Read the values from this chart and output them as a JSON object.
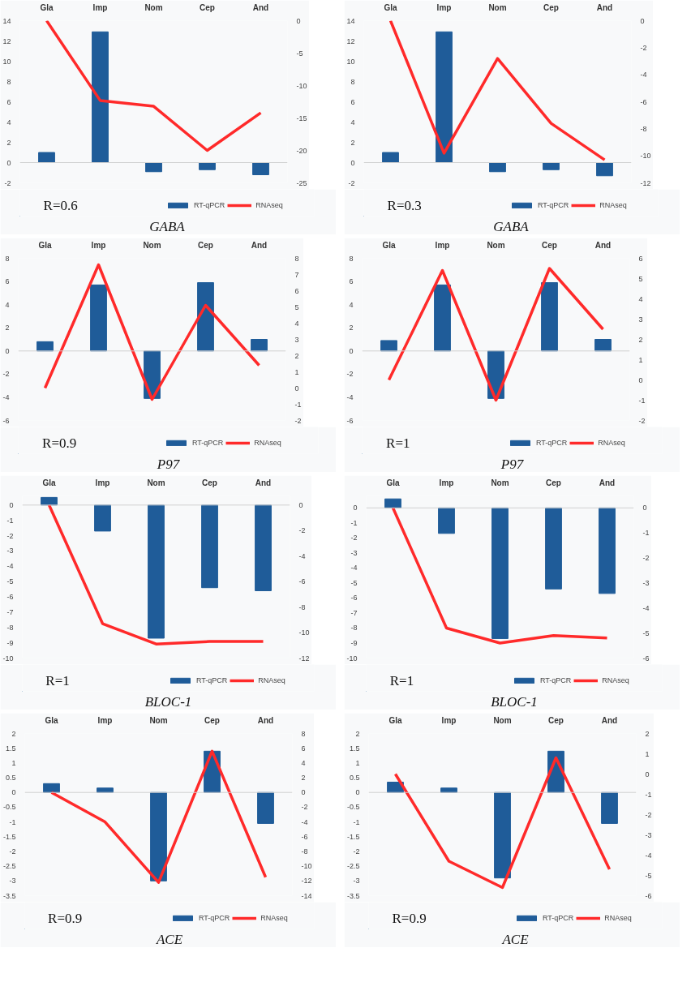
{
  "chart_data": [
    {
      "type": "bar",
      "title": "GABA",
      "categories": [
        "Gla",
        "Imp",
        "Nom",
        "Cep",
        "And"
      ],
      "annotations": [
        "R=0.6"
      ],
      "legend": "bottom",
      "ylim": [
        -2,
        14
      ],
      "yticks": [
        -2,
        0,
        2,
        4,
        6,
        8,
        10,
        12,
        14
      ],
      "y2lim": [
        -25,
        0
      ],
      "y2ticks": [
        -25,
        -20,
        -15,
        -10,
        -5,
        0
      ],
      "ref_lines": [
        {
          "axis": "y",
          "value": 0
        }
      ],
      "series": [
        {
          "name": "RT-qPCR",
          "color": "#1f5c99",
          "values": [
            1.0,
            12.9,
            -0.9,
            -0.7,
            -1.2
          ]
        },
        {
          "name": "RNAseq",
          "type": "line",
          "axis": "y2",
          "color": "#ff2a2a",
          "values": [
            0,
            -12.3,
            -13.2,
            -20,
            -14.2
          ]
        }
      ]
    },
    {
      "type": "bar",
      "title": "GABA",
      "categories": [
        "Gla",
        "Imp",
        "Nom",
        "Cep",
        "And"
      ],
      "annotations": [
        "R=0.3"
      ],
      "legend": "bottom",
      "ylim": [
        -2,
        14
      ],
      "yticks": [
        -2,
        0,
        2,
        4,
        6,
        8,
        10,
        12,
        14
      ],
      "y2lim": [
        -12,
        0
      ],
      "y2ticks": [
        -12,
        -10,
        -8,
        -6,
        -4,
        -2,
        0
      ],
      "ref_lines": [
        {
          "axis": "y",
          "value": 0
        }
      ],
      "series": [
        {
          "name": "RT-qPCR",
          "color": "#1f5c99",
          "values": [
            1.0,
            12.9,
            -0.9,
            -0.7,
            -1.3
          ]
        },
        {
          "name": "RNAseq",
          "type": "line",
          "axis": "y2",
          "color": "#ff2a2a",
          "values": [
            0,
            -9.8,
            -2.8,
            -7.6,
            -10.3
          ]
        }
      ]
    },
    {
      "type": "bar",
      "title": "P97",
      "categories": [
        "Gla",
        "Imp",
        "Nom",
        "Cep",
        "And"
      ],
      "annotations": [
        "R=0.9"
      ],
      "legend": "bottom",
      "ylim": [
        -6,
        8
      ],
      "yticks": [
        -6,
        -4,
        -2,
        0,
        2,
        4,
        6,
        8
      ],
      "y2lim": [
        -2,
        8
      ],
      "y2ticks": [
        -2,
        -1,
        0,
        1,
        2,
        3,
        4,
        5,
        6,
        7,
        8
      ],
      "ref_lines": [
        {
          "axis": "y",
          "value": 0
        }
      ],
      "series": [
        {
          "name": "RT-qPCR",
          "color": "#1f5c99",
          "values": [
            0.8,
            5.7,
            -4.1,
            5.9,
            1.0
          ]
        },
        {
          "name": "RNAseq",
          "type": "line",
          "axis": "y2",
          "color": "#ff2a2a",
          "values": [
            0,
            7.6,
            -0.7,
            5.1,
            1.4
          ]
        }
      ]
    },
    {
      "type": "bar",
      "title": "P97",
      "categories": [
        "Gla",
        "Imp",
        "Nom",
        "Cep",
        "And"
      ],
      "annotations": [
        "R=1"
      ],
      "legend": "bottom",
      "ylim": [
        -6,
        8
      ],
      "yticks": [
        -6,
        -4,
        -2,
        0,
        2,
        4,
        6,
        8
      ],
      "y2lim": [
        -2,
        6
      ],
      "y2ticks": [
        -2,
        -1,
        0,
        1,
        2,
        3,
        4,
        5,
        6
      ],
      "ref_lines": [
        {
          "axis": "y",
          "value": 0
        }
      ],
      "series": [
        {
          "name": "RT-qPCR",
          "color": "#1f5c99",
          "values": [
            0.9,
            5.7,
            -4.1,
            5.9,
            1.0
          ]
        },
        {
          "name": "RNAseq",
          "type": "line",
          "axis": "y2",
          "color": "#ff2a2a",
          "values": [
            0,
            5.4,
            -1.0,
            5.5,
            2.5
          ]
        }
      ]
    },
    {
      "type": "bar",
      "title": "BLOC-1",
      "categories": [
        "Gla",
        "Imp",
        "Nom",
        "Cep",
        "And"
      ],
      "annotations": [
        "R=1"
      ],
      "legend": "bottom",
      "ylim": [
        -10,
        0.6
      ],
      "yticks": [
        -10,
        -9,
        -8,
        -7,
        -6,
        -5,
        -4,
        -3,
        -2,
        -1,
        0
      ],
      "y2lim": [
        -12,
        0.72
      ],
      "y2ticks": [
        -12,
        -10,
        -8,
        -6,
        -4,
        -2,
        0
      ],
      "ref_lines": [
        {
          "axis": "y",
          "value": 0
        }
      ],
      "series": [
        {
          "name": "RT-qPCR",
          "color": "#1f5c99",
          "values": [
            0.5,
            -1.7,
            -8.7,
            -5.4,
            -5.6
          ]
        },
        {
          "name": "RNAseq",
          "type": "line",
          "axis": "y2",
          "color": "#ff2a2a",
          "values": [
            0,
            -9.3,
            -10.9,
            -10.7,
            -10.7
          ]
        }
      ]
    },
    {
      "type": "bar",
      "title": "BLOC-1",
      "categories": [
        "Gla",
        "Imp",
        "Nom",
        "Cep",
        "And"
      ],
      "annotations": [
        "R=1"
      ],
      "legend": "bottom",
      "ylim": [
        -10,
        0.8
      ],
      "yticks": [
        -10,
        -9,
        -8,
        -7,
        -6,
        -5,
        -4,
        -3,
        -2,
        -1,
        0
      ],
      "y2lim": [
        -6,
        0.48
      ],
      "y2ticks": [
        -6,
        -5,
        -4,
        -3,
        -2,
        -1,
        0
      ],
      "ref_lines": [
        {
          "axis": "y",
          "value": 0
        }
      ],
      "series": [
        {
          "name": "RT-qPCR",
          "color": "#1f5c99",
          "values": [
            0.6,
            -1.7,
            -8.7,
            -5.4,
            -5.7
          ]
        },
        {
          "name": "RNAseq",
          "type": "line",
          "axis": "y2",
          "color": "#ff2a2a",
          "values": [
            0,
            -4.8,
            -5.4,
            -5.1,
            -5.2
          ]
        }
      ]
    },
    {
      "type": "bar",
      "title": "ACE",
      "categories": [
        "Gla",
        "Imp",
        "Nom",
        "Cep",
        "And"
      ],
      "annotations": [
        "R=0.9"
      ],
      "legend": "bottom",
      "ylim": [
        -3.5,
        2
      ],
      "yticks": [
        -3.5,
        -3,
        -2.5,
        -2,
        -1.5,
        -1,
        -0.5,
        0,
        0.5,
        1,
        1.5,
        2
      ],
      "y2lim": [
        -14,
        8
      ],
      "y2ticks": [
        -14,
        -12,
        -10,
        -8,
        -6,
        -4,
        -2,
        0,
        2,
        4,
        6,
        8
      ],
      "ref_lines": [
        {
          "axis": "y",
          "value": 0
        }
      ],
      "series": [
        {
          "name": "RT-qPCR",
          "color": "#1f5c99",
          "values": [
            0.3,
            0.15,
            -3.0,
            1.4,
            -1.05
          ]
        },
        {
          "name": "RNAseq",
          "type": "line",
          "axis": "y2",
          "color": "#ff2a2a",
          "values": [
            0,
            -4,
            -12.2,
            5.6,
            -11.5
          ]
        }
      ]
    },
    {
      "type": "bar",
      "title": "ACE",
      "categories": [
        "Gla",
        "Imp",
        "Nom",
        "Cep",
        "And"
      ],
      "annotations": [
        "R=0.9"
      ],
      "legend": "bottom",
      "ylim": [
        -3.5,
        2
      ],
      "yticks": [
        -3.5,
        -3,
        -2.5,
        -2,
        -1.5,
        -1,
        -0.5,
        0,
        0.5,
        1,
        1.5,
        2
      ],
      "y2lim": [
        -6,
        2
      ],
      "y2ticks": [
        -6,
        -5,
        -4,
        -3,
        -2,
        -1,
        0,
        1,
        2
      ],
      "ref_lines": [
        {
          "axis": "y",
          "value": 0
        }
      ],
      "series": [
        {
          "name": "RT-qPCR",
          "color": "#1f5c99",
          "values": [
            0.35,
            0.15,
            -2.9,
            1.4,
            -1.05
          ]
        },
        {
          "name": "RNAseq",
          "type": "line",
          "axis": "y2",
          "color": "#ff2a2a",
          "values": [
            0,
            -4.3,
            -5.6,
            0.8,
            -4.7
          ]
        }
      ]
    }
  ]
}
